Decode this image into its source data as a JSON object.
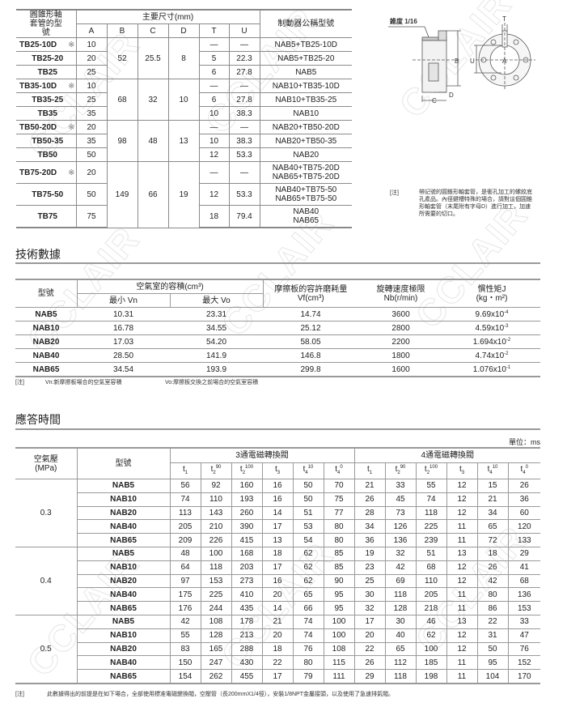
{
  "watermark": "CCLAIR",
  "bushing_table": {
    "header_model": "圓錐形軸套管的型號",
    "header_dims": "主要尺寸(mm)",
    "header_brake": "制動器公稱型號",
    "dim_cols": [
      "A",
      "B",
      "C",
      "D",
      "T",
      "U"
    ],
    "groups": [
      {
        "B": "52",
        "C": "25.5",
        "D": "8",
        "rows": [
          {
            "model": "TB25-10D",
            "mark": "※",
            "A": "10",
            "T": "—",
            "U": "—",
            "brake": [
              "NAB5+TB25-10D"
            ]
          },
          {
            "model": "TB25-20",
            "mark": "",
            "A": "20",
            "T": "5",
            "U": "22.3",
            "brake": [
              "NAB5+TB25-20"
            ]
          },
          {
            "model": "TB25",
            "mark": "",
            "A": "25",
            "T": "6",
            "U": "27.8",
            "brake": [
              "NAB5"
            ]
          }
        ]
      },
      {
        "B": "68",
        "C": "32",
        "D": "10",
        "rows": [
          {
            "model": "TB35-10D",
            "mark": "※",
            "A": "10",
            "T": "—",
            "U": "—",
            "brake": [
              "NAB10+TB35-10D"
            ]
          },
          {
            "model": "TB35-25",
            "mark": "",
            "A": "25",
            "T": "6",
            "U": "27.8",
            "brake": [
              "NAB10+TB35-25"
            ]
          },
          {
            "model": "TB35",
            "mark": "",
            "A": "35",
            "T": "10",
            "U": "38.3",
            "brake": [
              "NAB10"
            ]
          }
        ]
      },
      {
        "B": "98",
        "C": "48",
        "D": "13",
        "rows": [
          {
            "model": "TB50-20D",
            "mark": "※",
            "A": "20",
            "T": "—",
            "U": "—",
            "brake": [
              "NAB20+TB50-20D"
            ]
          },
          {
            "model": "TB50-35",
            "mark": "",
            "A": "35",
            "T": "10",
            "U": "38.3",
            "brake": [
              "NAB20+TB50-35"
            ]
          },
          {
            "model": "TB50",
            "mark": "",
            "A": "50",
            "T": "12",
            "U": "53.3",
            "brake": [
              "NAB20"
            ]
          }
        ]
      },
      {
        "B": "149",
        "C": "66",
        "D": "19",
        "rows": [
          {
            "model": "TB75-20D",
            "mark": "※",
            "A": "20",
            "T": "—",
            "U": "—",
            "brake": [
              "NAB40+TB75-20D",
              "NAB65+TB75-20D"
            ]
          },
          {
            "model": "TB75-50",
            "mark": "",
            "A": "50",
            "T": "12",
            "U": "53.3",
            "brake": [
              "NAB40+TB75-50",
              "NAB65+TB75-50"
            ]
          },
          {
            "model": "TB75",
            "mark": "",
            "A": "75",
            "T": "18",
            "U": "79.4",
            "brake": [
              "NAB40",
              "NAB65"
            ]
          }
        ]
      }
    ]
  },
  "diagram": {
    "taper_label": "錐度 1/16",
    "labels": {
      "A": "A",
      "B": "B",
      "C": "C",
      "D": "D",
      "T": "T",
      "U": "U"
    }
  },
  "bushing_note": {
    "tag": "[注]",
    "text": "帶記號的圓錐形軸套管，是衝孔加工的螺紋底孔產品。內徑鍵槽特殊的場合，請對這個圓錐形軸套管（末尾附有字母D）進行加工，加速所需要的切口。"
  },
  "tech": {
    "title": "技術數據",
    "h_model": "型號",
    "h_volume": "空氣室的容積(cm³)",
    "h_vn": "最小 Vn",
    "h_vo": "最大 Vo",
    "h_wear": [
      "摩擦板的容許磨耗量",
      "Vf(cm³)"
    ],
    "h_speed": [
      "旋轉速度極限",
      "Nb(r/min)"
    ],
    "h_inertia": [
      "慣性矩J",
      "(kg・m²)"
    ],
    "rows": [
      {
        "model": "NAB5",
        "vn": "10.31",
        "vo": "23.31",
        "vf": "14.74",
        "nb": "3600",
        "j": "9.69x10",
        "exp": "-4"
      },
      {
        "model": "NAB10",
        "vn": "16.78",
        "vo": "34.55",
        "vf": "25.12",
        "nb": "2800",
        "j": "4.59x10",
        "exp": "-3"
      },
      {
        "model": "NAB20",
        "vn": "17.03",
        "vo": "54.20",
        "vf": "58.05",
        "nb": "2200",
        "j": "1.694x10",
        "exp": "-2"
      },
      {
        "model": "NAB40",
        "vn": "28.50",
        "vo": "141.9",
        "vf": "146.8",
        "nb": "1800",
        "j": "4.74x10",
        "exp": "-2"
      },
      {
        "model": "NAB65",
        "vn": "34.54",
        "vo": "193.9",
        "vf": "299.8",
        "nb": "1600",
        "j": "1.076x10",
        "exp": "-1"
      }
    ],
    "note_tag": "[注]",
    "note_vn": "Vn:新摩擦板場合的空氣室容積",
    "note_vo": "Vo:摩擦板交換之前場合的空氣室容積"
  },
  "response": {
    "title": "應答時間",
    "unit": "單位：ms",
    "h_pressure": [
      "空氣壓",
      "(MPa)"
    ],
    "h_model": "型號",
    "h_3way": "3通電磁轉換閥",
    "h_4way": "4通電磁轉換閥",
    "cols": [
      [
        "t",
        "1",
        ""
      ],
      [
        "t",
        "2",
        "90"
      ],
      [
        "t",
        "2",
        "100"
      ],
      [
        "t",
        "3",
        ""
      ],
      [
        "t",
        "4",
        "10"
      ],
      [
        "t",
        "4",
        "0"
      ]
    ],
    "groups": [
      {
        "pressure": "0.3",
        "rows": [
          {
            "model": "NAB5",
            "v": [
              "56",
              "92",
              "160",
              "16",
              "50",
              "70",
              "21",
              "33",
              "55",
              "12",
              "15",
              "26"
            ]
          },
          {
            "model": "NAB10",
            "v": [
              "74",
              "110",
              "193",
              "16",
              "50",
              "75",
              "26",
              "45",
              "74",
              "12",
              "21",
              "36"
            ]
          },
          {
            "model": "NAB20",
            "v": [
              "113",
              "143",
              "260",
              "14",
              "51",
              "77",
              "28",
              "73",
              "118",
              "12",
              "34",
              "60"
            ]
          },
          {
            "model": "NAB40",
            "v": [
              "205",
              "210",
              "390",
              "17",
              "53",
              "80",
              "34",
              "126",
              "225",
              "11",
              "65",
              "120"
            ]
          },
          {
            "model": "NAB65",
            "v": [
              "209",
              "226",
              "415",
              "13",
              "54",
              "80",
              "36",
              "136",
              "239",
              "11",
              "72",
              "133"
            ]
          }
        ]
      },
      {
        "pressure": "0.4",
        "rows": [
          {
            "model": "NAB5",
            "v": [
              "48",
              "100",
              "168",
              "18",
              "62",
              "85",
              "19",
              "32",
              "51",
              "13",
              "18",
              "29"
            ]
          },
          {
            "model": "NAB10",
            "v": [
              "64",
              "118",
              "203",
              "17",
              "62",
              "85",
              "23",
              "42",
              "68",
              "12",
              "26",
              "41"
            ]
          },
          {
            "model": "NAB20",
            "v": [
              "97",
              "153",
              "273",
              "16",
              "62",
              "90",
              "25",
              "69",
              "110",
              "12",
              "42",
              "68"
            ]
          },
          {
            "model": "NAB40",
            "v": [
              "175",
              "225",
              "410",
              "20",
              "65",
              "95",
              "30",
              "118",
              "205",
              "11",
              "80",
              "136"
            ]
          },
          {
            "model": "NAB65",
            "v": [
              "176",
              "244",
              "435",
              "14",
              "66",
              "95",
              "32",
              "128",
              "218",
              "11",
              "86",
              "153"
            ]
          }
        ]
      },
      {
        "pressure": "0.5",
        "rows": [
          {
            "model": "NAB5",
            "v": [
              "42",
              "108",
              "178",
              "21",
              "74",
              "100",
              "17",
              "30",
              "46",
              "13",
              "22",
              "33"
            ]
          },
          {
            "model": "NAB10",
            "v": [
              "55",
              "128",
              "213",
              "20",
              "74",
              "100",
              "20",
              "40",
              "62",
              "12",
              "31",
              "47"
            ]
          },
          {
            "model": "NAB20",
            "v": [
              "83",
              "165",
              "288",
              "18",
              "76",
              "108",
              "22",
              "65",
              "100",
              "12",
              "50",
              "76"
            ]
          },
          {
            "model": "NAB40",
            "v": [
              "150",
              "247",
              "430",
              "22",
              "80",
              "115",
              "26",
              "112",
              "185",
              "11",
              "95",
              "152"
            ]
          },
          {
            "model": "NAB65",
            "v": [
              "154",
              "262",
              "455",
              "17",
              "79",
              "111",
              "29",
              "118",
              "198",
              "11",
              "104",
              "170"
            ]
          }
        ]
      }
    ],
    "note_tag": "[注]",
    "note": "此數據得出的前提是在如下場合，全部使用標准電磁變換閥，空壓管（長200mmX1/4徑），安裝1/8NPT金屬接頭，以及使用了急速排氣閥。"
  }
}
